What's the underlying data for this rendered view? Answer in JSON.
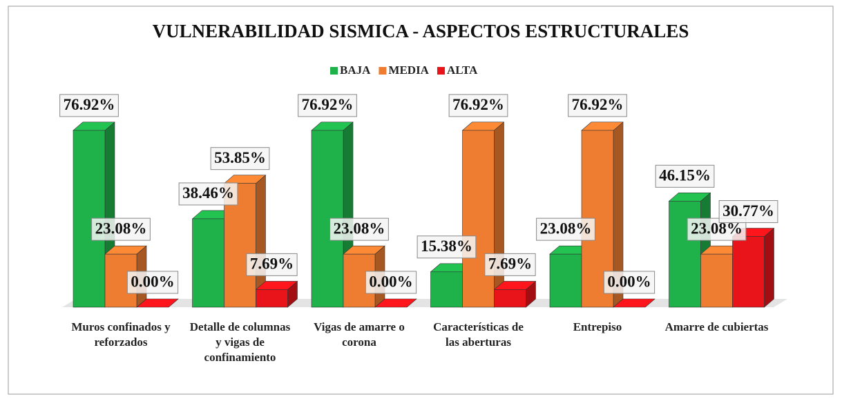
{
  "chart_data": {
    "type": "bar3d",
    "title": "VULNERABILIDAD SISMICA - ASPECTOS ESTRUCTURALES",
    "categories": [
      "Muros confinados y reforzados",
      "Detalle de columnas y vigas de confinamiento",
      "Vigas de amarre o corona",
      "Características de las aberturas",
      "Entrepiso",
      "Amarre de cubiertas"
    ],
    "series": [
      {
        "name": "BAJA",
        "color": "#1fb14a",
        "values": [
          76.92,
          38.46,
          76.92,
          15.38,
          23.08,
          46.15
        ],
        "value_labels": [
          "76.92%",
          "38.46%",
          "76.92%",
          "15.38%",
          "23.08%",
          "46.15%"
        ]
      },
      {
        "name": "MEDIA",
        "color": "#ee7d31",
        "values": [
          23.08,
          53.85,
          23.08,
          76.92,
          76.92,
          23.08
        ],
        "value_labels": [
          "23.08%",
          "53.85%",
          "23.08%",
          "76.92%",
          "76.92%",
          "23.08%"
        ]
      },
      {
        "name": "ALTA",
        "color": "#e8141a",
        "values": [
          0.0,
          7.69,
          0.0,
          7.69,
          0.0,
          30.77
        ],
        "value_labels": [
          "0.00%",
          "7.69%",
          "0.00%",
          "7.69%",
          "0.00%",
          "30.77%"
        ]
      }
    ],
    "legend": "top"
  }
}
